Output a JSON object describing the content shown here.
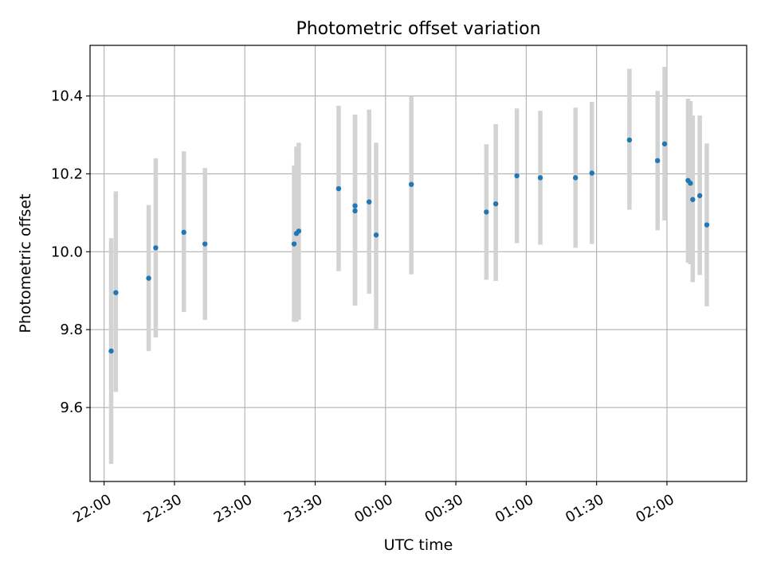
{
  "chart_data": {
    "type": "scatter",
    "title": "Photometric offset variation",
    "xlabel": "UTC time",
    "ylabel": "Photometric offset",
    "grid": true,
    "xlim": [
      "21:54",
      "02:34"
    ],
    "ylim": [
      9.41,
      10.53
    ],
    "x_ticks": [
      "22:00",
      "22:30",
      "23:00",
      "23:30",
      "00:00",
      "00:30",
      "01:00",
      "01:30",
      "02:00"
    ],
    "y_ticks": [
      "9.6",
      "9.8",
      "10.0",
      "10.2",
      "10.4"
    ],
    "points": [
      {
        "x": "22:03",
        "y": 9.745,
        "err_low": 9.455,
        "err_high": 10.035
      },
      {
        "x": "22:05",
        "y": 9.895,
        "err_low": 9.64,
        "err_high": 10.155
      },
      {
        "x": "22:19",
        "y": 9.932,
        "err_low": 9.745,
        "err_high": 10.12
      },
      {
        "x": "22:22",
        "y": 10.01,
        "err_low": 9.78,
        "err_high": 10.24
      },
      {
        "x": "22:34",
        "y": 10.05,
        "err_low": 9.845,
        "err_high": 10.258
      },
      {
        "x": "22:43",
        "y": 10.02,
        "err_low": 9.825,
        "err_high": 10.215
      },
      {
        "x": "23:21",
        "y": 10.02,
        "err_low": 9.82,
        "err_high": 10.222
      },
      {
        "x": "23:22",
        "y": 10.047,
        "err_low": 9.82,
        "err_high": 10.27
      },
      {
        "x": "23:23",
        "y": 10.053,
        "err_low": 9.825,
        "err_high": 10.28
      },
      {
        "x": "23:40",
        "y": 10.162,
        "err_low": 9.95,
        "err_high": 10.375
      },
      {
        "x": "23:47",
        "y": 10.118,
        "err_low": 9.862,
        "err_high": 10.352
      },
      {
        "x": "23:47",
        "y": 10.105,
        "err_low": 9.862,
        "err_high": 10.352
      },
      {
        "x": "23:53",
        "y": 10.128,
        "err_low": 9.892,
        "err_high": 10.365
      },
      {
        "x": "23:56",
        "y": 10.043,
        "err_low": 9.8,
        "err_high": 10.28
      },
      {
        "x": "00:11",
        "y": 10.173,
        "err_low": 9.942,
        "err_high": 10.4
      },
      {
        "x": "00:43",
        "y": 10.102,
        "err_low": 9.928,
        "err_high": 10.276
      },
      {
        "x": "00:47",
        "y": 10.123,
        "err_low": 9.925,
        "err_high": 10.328
      },
      {
        "x": "00:56",
        "y": 10.195,
        "err_low": 10.022,
        "err_high": 10.368
      },
      {
        "x": "01:06",
        "y": 10.19,
        "err_low": 10.018,
        "err_high": 10.362
      },
      {
        "x": "01:21",
        "y": 10.19,
        "err_low": 10.01,
        "err_high": 10.37
      },
      {
        "x": "01:28",
        "y": 10.202,
        "err_low": 10.02,
        "err_high": 10.385
      },
      {
        "x": "01:44",
        "y": 10.287,
        "err_low": 10.108,
        "err_high": 10.47
      },
      {
        "x": "01:56",
        "y": 10.234,
        "err_low": 10.055,
        "err_high": 10.413
      },
      {
        "x": "01:59",
        "y": 10.277,
        "err_low": 10.08,
        "err_high": 10.475
      },
      {
        "x": "02:09",
        "y": 10.183,
        "err_low": 9.972,
        "err_high": 10.393
      },
      {
        "x": "02:10",
        "y": 10.176,
        "err_low": 9.968,
        "err_high": 10.387
      },
      {
        "x": "02:11",
        "y": 10.134,
        "err_low": 9.922,
        "err_high": 10.35
      },
      {
        "x": "02:14",
        "y": 10.144,
        "err_low": 9.94,
        "err_high": 10.35
      },
      {
        "x": "02:17",
        "y": 10.069,
        "err_low": 9.86,
        "err_high": 10.278
      }
    ],
    "colors": {
      "points": "#1f77b4",
      "errorbars": "#d3d3d3",
      "grid": "#b0b0b0",
      "axes": "#000000"
    }
  }
}
